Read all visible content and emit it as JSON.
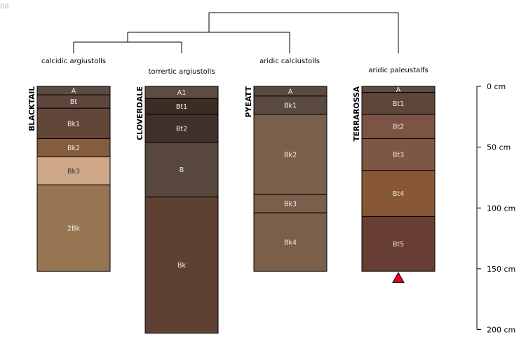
{
  "corner_label": "08",
  "colors": {
    "line": "#000000",
    "marker": "#e8001c",
    "background": "#ffffff"
  },
  "groups": [
    {
      "label": "calcidic argiustolls"
    },
    {
      "label": "torrertic argiustolls"
    },
    {
      "label": "aridic calciustolls"
    },
    {
      "label": "aridic paleustalfs"
    }
  ],
  "profiles": [
    {
      "name": "BLACKTAIL",
      "horizons": [
        {
          "name": "A",
          "top": 0,
          "bottom": 7,
          "color": "#5d4a42"
        },
        {
          "name": "Bt",
          "top": 7,
          "bottom": 18,
          "color": "#5e463d"
        },
        {
          "name": "Bk1",
          "top": 18,
          "bottom": 43,
          "color": "#62463a"
        },
        {
          "name": "Bk2",
          "top": 43,
          "bottom": 58,
          "color": "#845c3e"
        },
        {
          "name": "Bk3",
          "top": 58,
          "bottom": 81,
          "color": "#cea688"
        },
        {
          "name": "2Bk",
          "top": 81,
          "bottom": 152,
          "color": "#987552"
        }
      ]
    },
    {
      "name": "CLOVERDALE",
      "horizons": [
        {
          "name": "A1",
          "top": 0,
          "bottom": 10,
          "color": "#5e4b41"
        },
        {
          "name": "Bt1",
          "top": 10,
          "bottom": 23,
          "color": "#3d2c24"
        },
        {
          "name": "Bt2",
          "top": 23,
          "bottom": 46,
          "color": "#41302a"
        },
        {
          "name": "B",
          "top": 46,
          "bottom": 91,
          "color": "#58473d"
        },
        {
          "name": "Bk",
          "top": 91,
          "bottom": 203,
          "color": "#5e4133"
        }
      ]
    },
    {
      "name": "PYEATT",
      "horizons": [
        {
          "name": "A",
          "top": 0,
          "bottom": 8,
          "color": "#5c4a40"
        },
        {
          "name": "Bk1",
          "top": 8,
          "bottom": 23,
          "color": "#5b4a40"
        },
        {
          "name": "Bk2",
          "top": 23,
          "bottom": 89,
          "color": "#7a5f4b"
        },
        {
          "name": "Bk3",
          "top": 89,
          "bottom": 104,
          "color": "#7a5f4b"
        },
        {
          "name": "Bk4",
          "top": 104,
          "bottom": 152,
          "color": "#7a5f4b"
        }
      ]
    },
    {
      "name": "TERRAROSSA",
      "horizons": [
        {
          "name": "A",
          "top": 0,
          "bottom": 5,
          "color": "#5e4b41"
        },
        {
          "name": "Bt1",
          "top": 5,
          "bottom": 23,
          "color": "#5f463b"
        },
        {
          "name": "Bt2",
          "top": 23,
          "bottom": 43,
          "color": "#7b5443"
        },
        {
          "name": "Bt3",
          "top": 43,
          "bottom": 69,
          "color": "#7c5744"
        },
        {
          "name": "Bt4",
          "top": 69,
          "bottom": 107,
          "color": "#885834"
        },
        {
          "name": "Bt5",
          "top": 107,
          "bottom": 152,
          "color": "#683d33"
        }
      ],
      "marker": "triangle"
    }
  ],
  "depth_axis": {
    "unit": "cm",
    "min": 0,
    "max": 200,
    "ticks": [
      {
        "value": 0,
        "label": "0 cm"
      },
      {
        "value": 50,
        "label": "50 cm"
      },
      {
        "value": 100,
        "label": "100 cm"
      },
      {
        "value": 150,
        "label": "150 cm"
      },
      {
        "value": 200,
        "label": "200 cm"
      }
    ]
  }
}
